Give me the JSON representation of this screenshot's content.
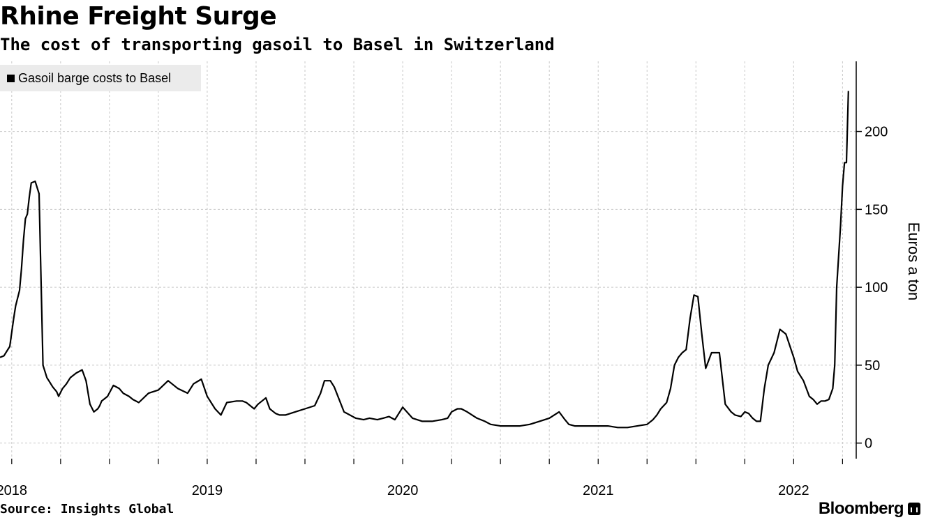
{
  "header": {
    "title": "Rhine Freight Surge",
    "subtitle": "The cost of transporting gasoil to Basel in Switzerland"
  },
  "footer": {
    "source": "Source: Insights Global",
    "brand": "Bloomberg"
  },
  "colors": {
    "line": "#000000",
    "grid": "#c8c8c8",
    "legend_bg": "#ebebeb"
  },
  "chart_data": {
    "type": "line",
    "title": "Rhine Freight Surge",
    "subtitle": "The cost of transporting gasoil to Basel in Switzerland",
    "ylabel": "Euros a ton",
    "ylim": [
      -10,
      245
    ],
    "yticks": [
      0,
      50,
      100,
      150,
      200
    ],
    "y_axis_side": "right",
    "xlim": [
      2017.94,
      2022.32
    ],
    "xticks": [
      {
        "label": "2018",
        "value": 2018.0
      },
      {
        "label": "2019",
        "value": 2019.0
      },
      {
        "label": "2020",
        "value": 2020.0
      },
      {
        "label": "2021",
        "value": 2021.0
      },
      {
        "label": "2022",
        "value": 2022.0
      }
    ],
    "grid": true,
    "legend_placement": "top-left",
    "series": [
      {
        "name": "Gasoil barge costs to Basel",
        "x": [
          2017.94,
          2017.96,
          2017.98,
          2017.99,
          2018.01,
          2018.02,
          2018.04,
          2018.05,
          2018.06,
          2018.07,
          2018.08,
          2018.09,
          2018.1,
          2018.12,
          2018.14,
          2018.16,
          2018.18,
          2018.19,
          2018.2,
          2018.21,
          2018.23,
          2018.24,
          2018.26,
          2018.28,
          2018.29,
          2018.3,
          2018.33,
          2018.36,
          2018.38,
          2018.4,
          2018.42,
          2018.44,
          2018.45,
          2018.46,
          2018.47,
          2018.49,
          2018.52,
          2018.55,
          2018.57,
          2018.6,
          2018.62,
          2018.65,
          2018.7,
          2018.75,
          2018.8,
          2018.85,
          2018.9,
          2018.93,
          2018.97,
          2019.0,
          2019.04,
          2019.07,
          2019.1,
          2019.15,
          2019.18,
          2019.2,
          2019.24,
          2019.26,
          2019.3,
          2019.32,
          2019.35,
          2019.37,
          2019.4,
          2019.45,
          2019.5,
          2019.55,
          2019.58,
          2019.6,
          2019.63,
          2019.65,
          2019.7,
          2019.76,
          2019.8,
          2019.83,
          2019.87,
          2019.9,
          2019.93,
          2019.96,
          2020.0,
          2020.05,
          2020.1,
          2020.15,
          2020.2,
          2020.23,
          2020.25,
          2020.28,
          2020.3,
          2020.33,
          2020.38,
          2020.42,
          2020.45,
          2020.5,
          2020.55,
          2020.6,
          2020.65,
          2020.7,
          2020.75,
          2020.8,
          2020.83,
          2020.85,
          2020.88,
          2020.95,
          2021.05,
          2021.1,
          2021.15,
          2021.2,
          2021.25,
          2021.28,
          2021.3,
          2021.32,
          2021.35,
          2021.37,
          2021.39,
          2021.41,
          2021.43,
          2021.45,
          2021.47,
          2021.49,
          2021.51,
          2021.53,
          2021.55,
          2021.58,
          2021.62,
          2021.65,
          2021.68,
          2021.7,
          2021.73,
          2021.75,
          2021.77,
          2021.79,
          2021.81,
          2021.83,
          2021.85,
          2021.87,
          2021.9,
          2021.93,
          2021.96,
          2022.0,
          2022.02,
          2022.05,
          2022.08,
          2022.1,
          2022.12,
          2022.14,
          2022.16,
          2022.18,
          2022.2,
          2022.21,
          2022.22,
          2022.24,
          2022.25,
          2022.26,
          2022.27,
          2022.28
        ],
        "y": [
          55,
          56,
          60,
          62,
          80,
          88,
          98,
          112,
          130,
          144,
          147,
          158,
          167,
          168,
          160,
          50,
          42,
          40,
          38,
          36,
          33,
          30,
          35,
          38,
          40,
          42,
          45,
          47,
          40,
          25,
          20,
          22,
          24,
          27,
          28,
          30,
          37,
          35,
          32,
          30,
          28,
          26,
          32,
          34,
          40,
          35,
          32,
          38,
          41,
          30,
          22,
          18,
          26,
          27,
          27,
          26,
          22,
          25,
          29,
          22,
          19,
          18,
          18,
          20,
          22,
          24,
          32,
          40,
          40,
          36,
          20,
          16,
          15,
          16,
          15,
          16,
          17,
          15,
          23,
          16,
          14,
          14,
          15,
          16,
          20,
          22,
          22,
          20,
          16,
          14,
          12,
          11,
          11,
          11,
          12,
          14,
          16,
          20,
          15,
          12,
          11,
          11,
          11,
          10,
          10,
          11,
          12,
          15,
          18,
          22,
          26,
          35,
          50,
          55,
          58,
          60,
          80,
          95,
          94,
          70,
          48,
          58,
          58,
          25,
          20,
          18,
          17,
          20,
          19,
          16,
          14,
          14,
          35,
          50,
          58,
          73,
          70,
          55,
          46,
          40,
          30,
          28,
          25,
          27,
          27,
          28,
          35,
          50,
          100,
          140,
          165,
          180,
          180,
          226
        ]
      }
    ]
  }
}
